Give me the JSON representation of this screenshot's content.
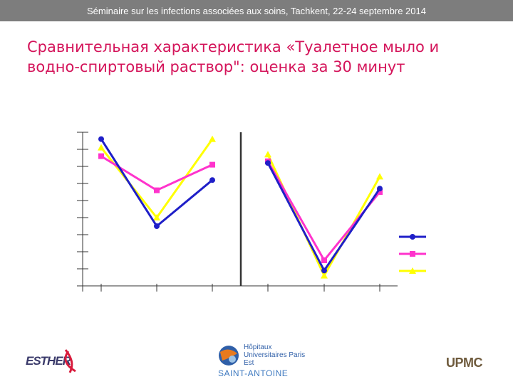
{
  "header": {
    "text": "Séminaire sur les infections associées aux soins, Tachkent, 22-24 septembre 2014"
  },
  "title": "Сравнительная характеристика «Туалетное мыло и водно-спиртовый раствор\": оценка за 30 минут",
  "colors": {
    "header_bg": "#7d7d7d",
    "title": "#d4145a",
    "series": [
      "#1f1fc8",
      "#ff33cc",
      "#ffff00"
    ]
  },
  "chart_data": {
    "type": "line",
    "title": "",
    "xlabel": "",
    "ylabel": "",
    "ylim": [
      0,
      9
    ],
    "y_ticks": 9,
    "grid": false,
    "legend": "right",
    "legend_markers": [
      "circle",
      "square",
      "triangle"
    ],
    "panels": [
      {
        "categories": [
          "",
          "",
          ""
        ],
        "series": [
          {
            "marker": "circle",
            "color": "#1f1fc8",
            "values": [
              8.6,
              3.5,
              6.2
            ]
          },
          {
            "marker": "square",
            "color": "#ff33cc",
            "values": [
              7.6,
              5.6,
              7.1
            ]
          },
          {
            "marker": "triangle",
            "color": "#ffff00",
            "values": [
              8.1,
              4.0,
              8.6
            ]
          }
        ]
      },
      {
        "categories": [
          "",
          "",
          ""
        ],
        "series": [
          {
            "marker": "circle",
            "color": "#1f1fc8",
            "values": [
              7.2,
              0.9,
              5.7
            ]
          },
          {
            "marker": "square",
            "color": "#ff33cc",
            "values": [
              7.3,
              1.5,
              5.5
            ]
          },
          {
            "marker": "triangle",
            "color": "#ffff00",
            "values": [
              7.7,
              0.6,
              6.4
            ]
          }
        ]
      }
    ]
  },
  "logos": {
    "esther": "ESTHER",
    "hopitaux_line1": "Hôpitaux Universitaires Paris Est",
    "hopitaux_line2": "SAINT-ANTOINE",
    "upmc": "UPMC"
  }
}
